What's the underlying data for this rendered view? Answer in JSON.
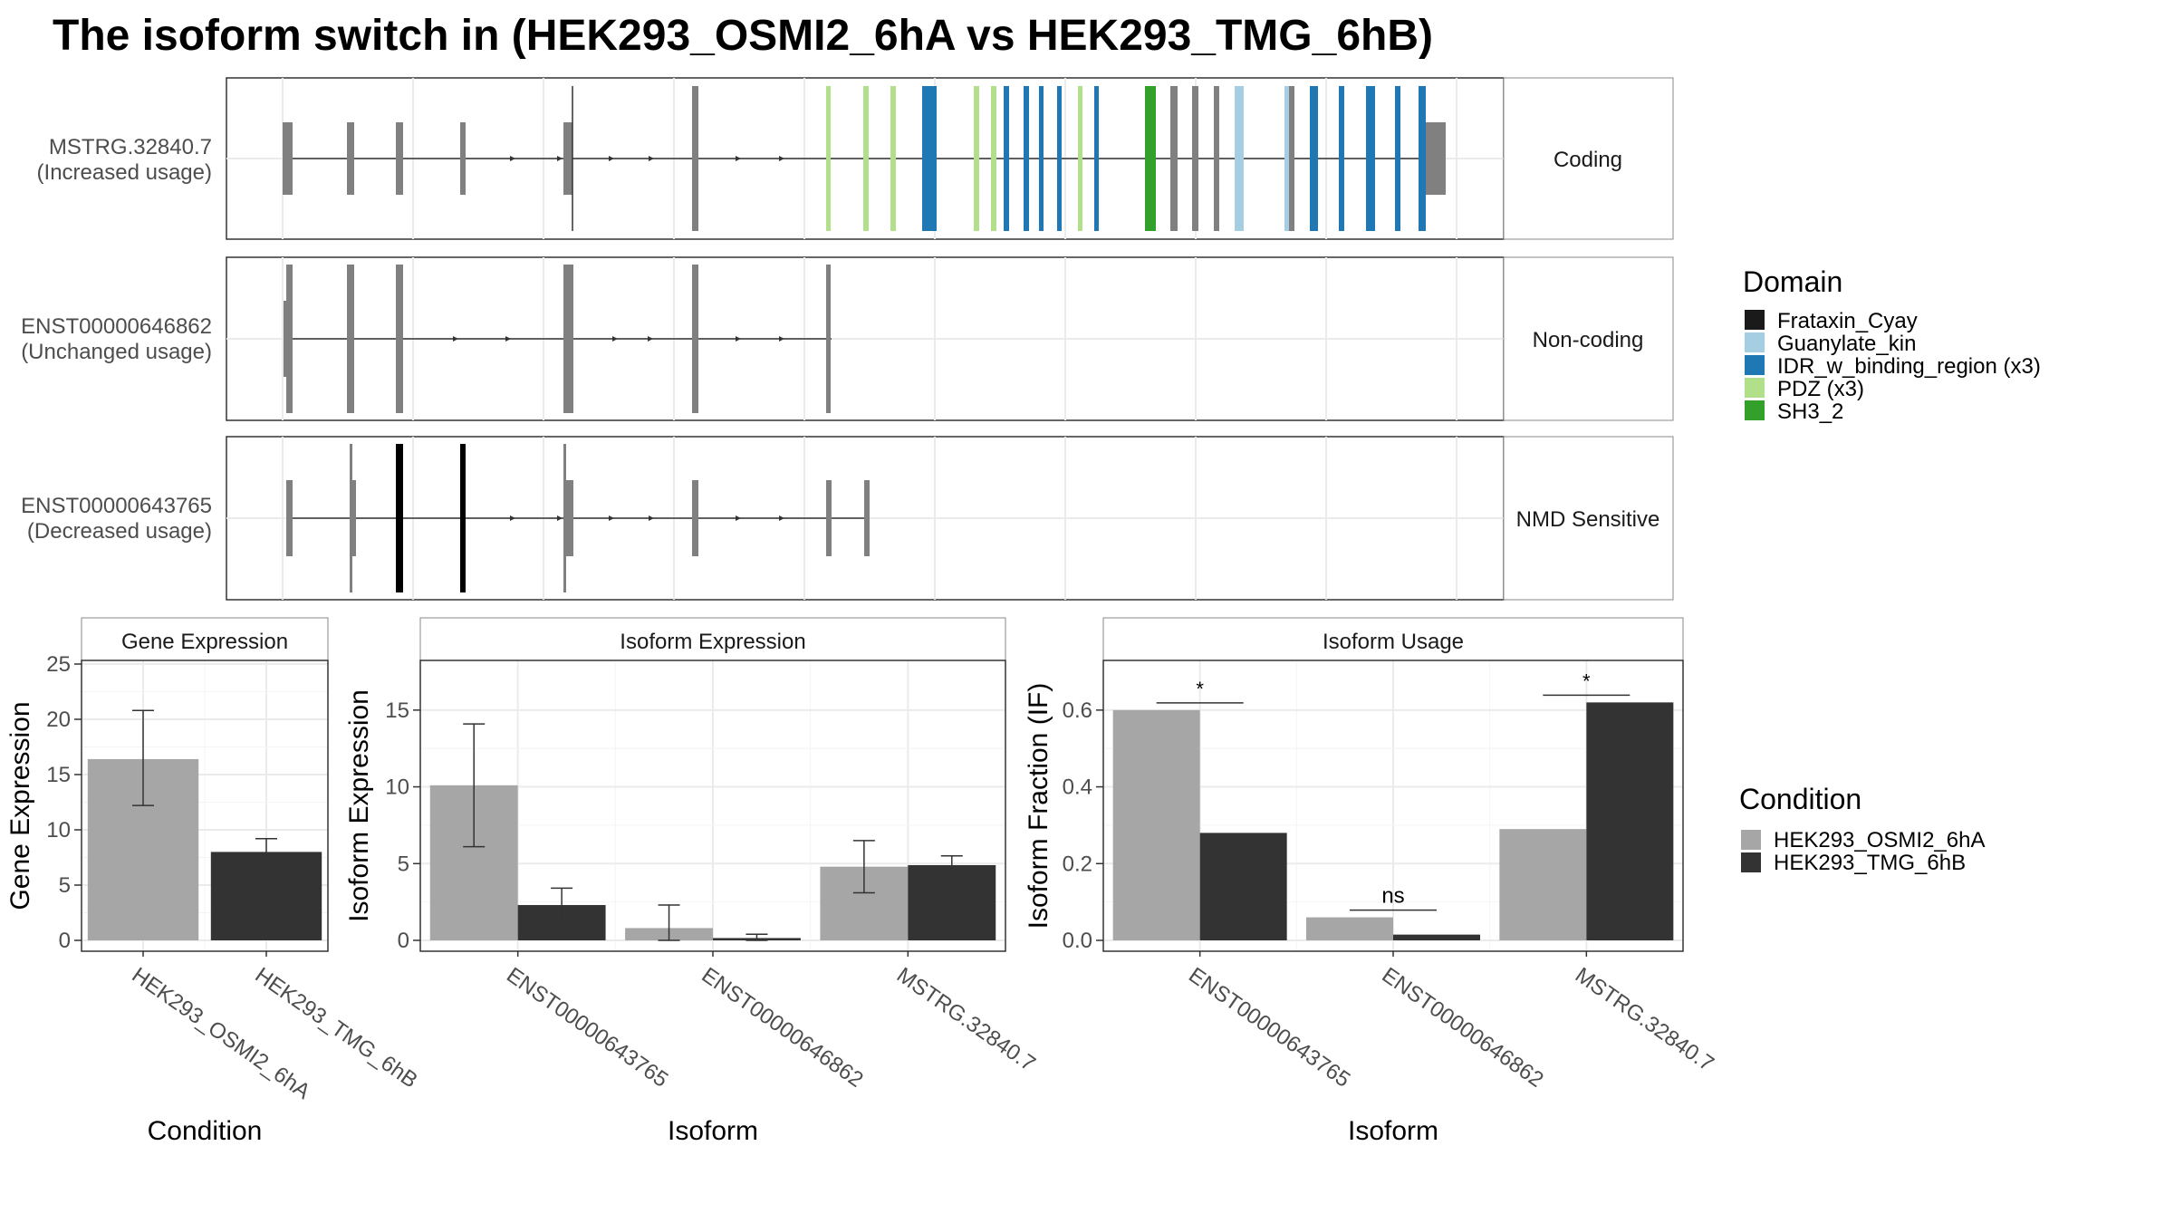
{
  "title": "The isoform switch in  (HEK293_OSMI2_6hA vs HEK293_TMG_6hB)",
  "colors": {
    "intron": "#333333",
    "exon_default": "#808080",
    "exon_nmd_black": "#000000",
    "frataxin": "#1a1a1a",
    "guanylate": "#a6cee3",
    "idr": "#1f78b4",
    "pdz": "#b2df8a",
    "sh3": "#33a02c",
    "cond_a": "#a6a6a6",
    "cond_b": "#333333",
    "panel_border": "#333333",
    "strip_bg": "#ffffff",
    "grid": "#ebebeb"
  },
  "transcripts": [
    {
      "name": "MSTRG.32840.7",
      "usage": "(Increased usage)",
      "category": "Coding"
    },
    {
      "name": "ENST00000646862",
      "usage": "(Unchanged usage)",
      "category": "Non-coding"
    },
    {
      "name": "ENST00000643765",
      "usage": "(Decreased usage)",
      "category": "NMD Sensitive"
    }
  ],
  "legend_domain": {
    "title": "Domain",
    "items": [
      {
        "label": "Frataxin_Cyay",
        "color": "#1a1a1a"
      },
      {
        "label": "Guanylate_kin",
        "color": "#a6cee3"
      },
      {
        "label": "IDR_w_binding_region (x3)",
        "color": "#1f78b4"
      },
      {
        "label": "PDZ (x3)",
        "color": "#b2df8a"
      },
      {
        "label": "SH3_2",
        "color": "#33a02c"
      }
    ]
  },
  "legend_condition": {
    "title": "Condition",
    "items": [
      {
        "label": "HEK293_OSMI2_6hA",
        "color": "#a6a6a6"
      },
      {
        "label": "HEK293_TMG_6hB",
        "color": "#333333"
      }
    ]
  },
  "chart_data": [
    {
      "type": "bar",
      "title": "Gene Expression",
      "xlabel": "Condition",
      "ylabel": "Gene Expression",
      "ylim": [
        0,
        25
      ],
      "yticks": [
        0,
        5,
        10,
        15,
        20,
        25
      ],
      "categories": [
        "HEK293_OSMI2_6hA",
        "HEK293_TMG_6hB"
      ],
      "values": [
        16.4,
        8.0
      ],
      "errors": [
        [
          12.2,
          20.8
        ],
        [
          6.9,
          9.2
        ]
      ]
    },
    {
      "type": "bar",
      "title": "Isoform Expression",
      "xlabel": "Isoform",
      "ylabel": "Isoform Expression",
      "ylim": [
        0,
        18
      ],
      "yticks": [
        0,
        5,
        10,
        15
      ],
      "categories": [
        "ENST00000643765",
        "ENST00000646862",
        "MSTRG.32840.7"
      ],
      "series": [
        {
          "name": "HEK293_OSMI2_6hA",
          "values": [
            10.1,
            0.8,
            4.8
          ],
          "errors": [
            [
              6.1,
              14.1
            ],
            [
              0.0,
              2.3
            ],
            [
              3.1,
              6.5
            ]
          ]
        },
        {
          "name": "HEK293_TMG_6hB",
          "values": [
            2.3,
            0.15,
            4.9
          ],
          "errors": [
            [
              1.2,
              3.4
            ],
            [
              0.0,
              0.4
            ],
            [
              4.3,
              5.5
            ]
          ]
        }
      ]
    },
    {
      "type": "bar",
      "title": "Isoform Usage",
      "xlabel": "Isoform",
      "ylabel": "Isoform Fraction (IF)",
      "ylim": [
        0,
        0.72
      ],
      "yticks": [
        "0.0",
        "0.2",
        "0.4",
        "0.6"
      ],
      "categories": [
        "ENST00000643765",
        "ENST00000646862",
        "MSTRG.32840.7"
      ],
      "series": [
        {
          "name": "HEK293_OSMI2_6hA",
          "values": [
            0.6,
            0.06,
            0.29
          ]
        },
        {
          "name": "HEK293_TMG_6hB",
          "values": [
            0.28,
            0.015,
            0.62
          ]
        }
      ],
      "significance": [
        "*",
        "ns",
        "*"
      ]
    }
  ]
}
